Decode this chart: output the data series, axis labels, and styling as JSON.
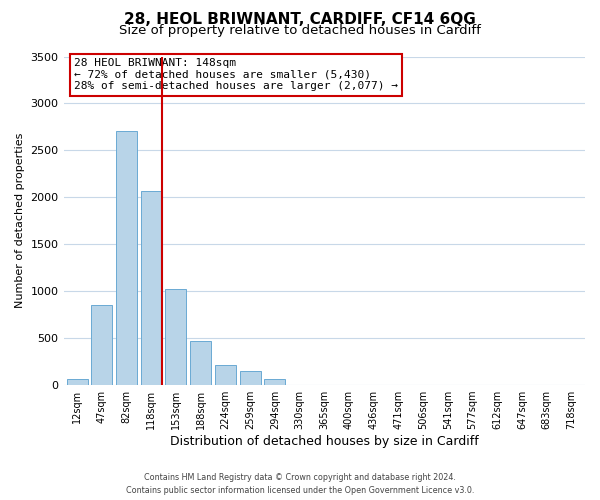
{
  "title": "28, HEOL BRIWNANT, CARDIFF, CF14 6QG",
  "subtitle": "Size of property relative to detached houses in Cardiff",
  "xlabel": "Distribution of detached houses by size in Cardiff",
  "ylabel": "Number of detached properties",
  "bar_labels": [
    "12sqm",
    "47sqm",
    "82sqm",
    "118sqm",
    "153sqm",
    "188sqm",
    "224sqm",
    "259sqm",
    "294sqm",
    "330sqm",
    "365sqm",
    "400sqm",
    "436sqm",
    "471sqm",
    "506sqm",
    "541sqm",
    "577sqm",
    "612sqm",
    "647sqm",
    "683sqm",
    "718sqm"
  ],
  "bar_values": [
    55,
    850,
    2700,
    2060,
    1020,
    460,
    210,
    145,
    55,
    0,
    0,
    0,
    0,
    0,
    0,
    0,
    0,
    0,
    0,
    0,
    0
  ],
  "bar_color": "#b8d4e8",
  "bar_edge_color": "#6aaad4",
  "vline_color": "#cc0000",
  "annotation_line1": "28 HEOL BRIWNANT: 148sqm",
  "annotation_line2": "← 72% of detached houses are smaller (5,430)",
  "annotation_line3": "28% of semi-detached houses are larger (2,077) →",
  "ylim": [
    0,
    3500
  ],
  "yticks": [
    0,
    500,
    1000,
    1500,
    2000,
    2500,
    3000,
    3500
  ],
  "footer_line1": "Contains HM Land Registry data © Crown copyright and database right 2024.",
  "footer_line2": "Contains public sector information licensed under the Open Government Licence v3.0.",
  "bg_color": "#ffffff",
  "grid_color": "#c8d8e8",
  "title_fontsize": 11,
  "subtitle_fontsize": 9.5
}
